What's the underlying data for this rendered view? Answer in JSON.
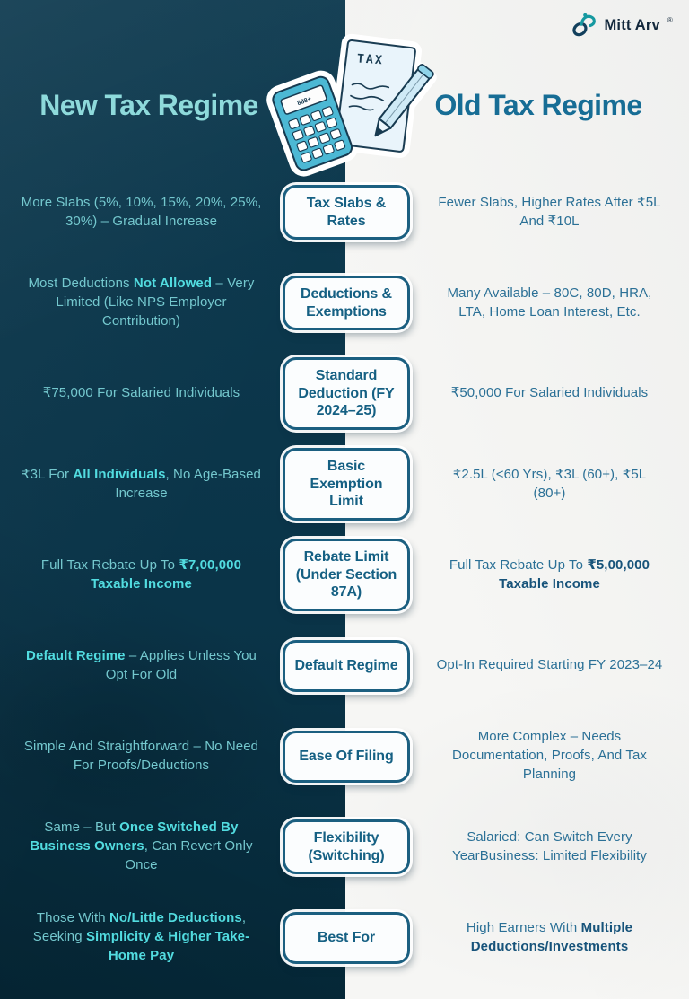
{
  "brand": {
    "name": "Mitt Arv",
    "registered_mark": "®",
    "icon": "infinity-loop-icon"
  },
  "header": {
    "left_title": "New Tax Regime",
    "right_title": "Old Tax Regime",
    "illustration": "tax-calculator-paper-pencil",
    "illustration_label": "TAX",
    "calculator_display": "888+"
  },
  "colors": {
    "left_bg": "#0e3b50",
    "right_bg": "#f6f6f4",
    "left_title": "#8edadb",
    "right_title": "#176d95",
    "left_text": "#74c8ce",
    "left_text_bold": "#52dce0",
    "right_text": "#2b7096",
    "right_text_bold": "#17537a",
    "box_border": "#1b5f80",
    "box_bg": "#fbfdfe",
    "box_label": "#156083",
    "brand_teal": "#1699a0",
    "brand_navy": "#12405c"
  },
  "rows": [
    {
      "label": "Tax Slabs & Rates",
      "left": [
        {
          "t": "More Slabs (5%, 10%, 15%, 20%, 25%, 30%) – Gradual Increase"
        }
      ],
      "right": [
        {
          "t": "Fewer Slabs, Higher Rates After ₹5L And ₹10L"
        }
      ]
    },
    {
      "label": "Deductions & Exemptions",
      "left": [
        {
          "t": "Most Deductions "
        },
        {
          "t": "Not Allowed",
          "b": true
        },
        {
          "t": " – Very Limited (Like NPS Employer Contribution)"
        }
      ],
      "right": [
        {
          "t": "Many Available – 80C, 80D, HRA, LTA, Home Loan Interest, Etc."
        }
      ]
    },
    {
      "label": "Standard Deduction (FY 2024–25)",
      "left": [
        {
          "t": "₹75,000 For Salaried Individuals"
        }
      ],
      "right": [
        {
          "t": "₹50,000 For Salaried Individuals"
        }
      ]
    },
    {
      "label": "Basic Exemption Limit",
      "left": [
        {
          "t": "₹3L For "
        },
        {
          "t": "All Individuals",
          "b": true
        },
        {
          "t": ", No Age-Based Increase"
        }
      ],
      "right": [
        {
          "t": "₹2.5L (<60 Yrs), ₹3L (60+), ₹5L (80+)"
        }
      ]
    },
    {
      "label": "Rebate Limit (Under Section 87A)",
      "left": [
        {
          "t": "Full Tax Rebate Up To "
        },
        {
          "t": "₹7,00,000 Taxable Income",
          "b": true
        }
      ],
      "right": [
        {
          "t": "Full Tax Rebate Up To "
        },
        {
          "t": "₹5,00,000 Taxable Income",
          "b": true
        }
      ]
    },
    {
      "label": "Default Regime",
      "left": [
        {
          "t": "Default Regime",
          "b": true
        },
        {
          "t": " – Applies Unless You Opt For Old"
        }
      ],
      "right": [
        {
          "t": "Opt-In Required Starting FY 2023–24"
        }
      ]
    },
    {
      "label": "Ease Of Filing",
      "left": [
        {
          "t": "Simple And Straightforward – No Need For Proofs/Deductions"
        }
      ],
      "right": [
        {
          "t": "More Complex – Needs Documentation, Proofs, And Tax Planning"
        }
      ]
    },
    {
      "label": "Flexibility (Switching)",
      "left": [
        {
          "t": "Same – But "
        },
        {
          "t": "Once Switched By Business Owners",
          "b": true
        },
        {
          "t": ", Can Revert Only Once"
        }
      ],
      "right": [
        {
          "t": "Salaried: Can Switch Every YearBusiness: Limited Flexibility"
        }
      ]
    },
    {
      "label": "Best For",
      "left": [
        {
          "t": "Those With "
        },
        {
          "t": "No/Little Deductions",
          "b": true
        },
        {
          "t": ", Seeking "
        },
        {
          "t": "Simplicity & Higher Take-Home Pay",
          "b": true
        }
      ],
      "right": [
        {
          "t": "High Earners With "
        },
        {
          "t": "Multiple Deductions/Investments",
          "b": true
        }
      ]
    }
  ]
}
